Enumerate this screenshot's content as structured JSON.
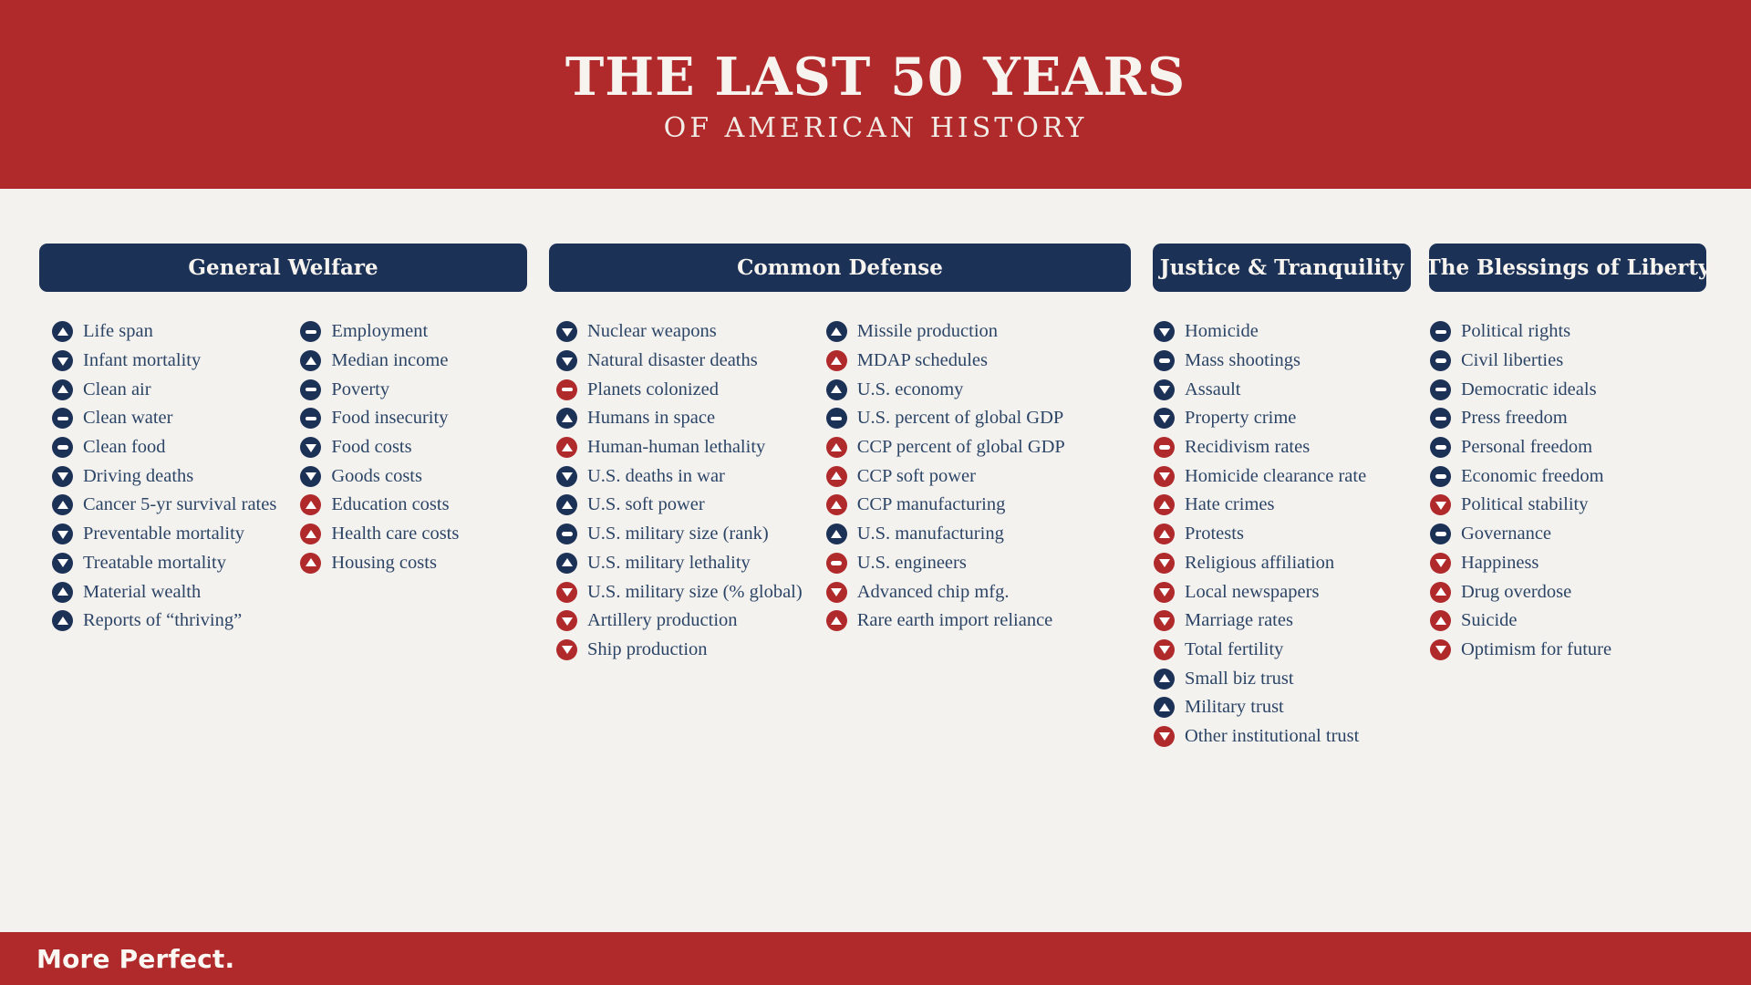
{
  "header": {
    "title": "THE LAST 50 YEARS",
    "subtitle": "OF AMERICAN HISTORY"
  },
  "footer": {
    "brand": "More Perfect."
  },
  "colors": {
    "red": "#B02A2C",
    "navy": "#1C3156",
    "background": "#F4F2EF",
    "item_text": "#2C4566"
  },
  "icon_legend": {
    "up": "trend-up-icon",
    "down": "trend-down-icon",
    "flat": "trend-flat-icon",
    "navy": "neutral-or-positive-tone",
    "red": "negative-tone"
  },
  "columns": [
    {
      "title": "General Welfare",
      "lists": [
        [
          {
            "label": "Life span",
            "trend": "up",
            "tone": "navy"
          },
          {
            "label": "Infant mortality",
            "trend": "down",
            "tone": "navy"
          },
          {
            "label": "Clean air",
            "trend": "up",
            "tone": "navy"
          },
          {
            "label": "Clean water",
            "trend": "flat",
            "tone": "navy"
          },
          {
            "label": "Clean food",
            "trend": "flat",
            "tone": "navy"
          },
          {
            "label": "Driving deaths",
            "trend": "down",
            "tone": "navy"
          },
          {
            "label": "Cancer 5-yr survival rates",
            "trend": "up",
            "tone": "navy"
          },
          {
            "label": "Preventable mortality",
            "trend": "down",
            "tone": "navy"
          },
          {
            "label": "Treatable mortality",
            "trend": "down",
            "tone": "navy"
          },
          {
            "label": "Material wealth",
            "trend": "up",
            "tone": "navy"
          },
          {
            "label": "Reports of “thriving”",
            "trend": "up",
            "tone": "navy"
          }
        ],
        [
          {
            "label": "Employment",
            "trend": "flat",
            "tone": "navy"
          },
          {
            "label": "Median income",
            "trend": "up",
            "tone": "navy"
          },
          {
            "label": "Poverty",
            "trend": "flat",
            "tone": "navy"
          },
          {
            "label": "Food insecurity",
            "trend": "flat",
            "tone": "navy"
          },
          {
            "label": "Food costs",
            "trend": "down",
            "tone": "navy"
          },
          {
            "label": "Goods costs",
            "trend": "down",
            "tone": "navy"
          },
          {
            "label": "Education costs",
            "trend": "up",
            "tone": "red"
          },
          {
            "label": "Health care costs",
            "trend": "up",
            "tone": "red"
          },
          {
            "label": "Housing costs",
            "trend": "up",
            "tone": "red"
          }
        ]
      ]
    },
    {
      "title": "Common Defense",
      "lists": [
        [
          {
            "label": "Nuclear weapons",
            "trend": "down",
            "tone": "navy"
          },
          {
            "label": "Natural disaster deaths",
            "trend": "down",
            "tone": "navy"
          },
          {
            "label": "Planets colonized",
            "trend": "flat",
            "tone": "red"
          },
          {
            "label": "Humans in space",
            "trend": "up",
            "tone": "navy"
          },
          {
            "label": "Human-human lethality",
            "trend": "up",
            "tone": "red"
          },
          {
            "label": "U.S. deaths in war",
            "trend": "down",
            "tone": "navy"
          },
          {
            "label": "U.S. soft power",
            "trend": "up",
            "tone": "navy"
          },
          {
            "label": "U.S. military size (rank)",
            "trend": "flat",
            "tone": "navy"
          },
          {
            "label": "U.S. military lethality",
            "trend": "up",
            "tone": "navy"
          },
          {
            "label": "U.S. military size (% global)",
            "trend": "down",
            "tone": "red"
          },
          {
            "label": "Artillery production",
            "trend": "down",
            "tone": "red"
          },
          {
            "label": "Ship production",
            "trend": "down",
            "tone": "red"
          }
        ],
        [
          {
            "label": "Missile production",
            "trend": "up",
            "tone": "navy"
          },
          {
            "label": "MDAP schedules",
            "trend": "up",
            "tone": "red"
          },
          {
            "label": "U.S. economy",
            "trend": "up",
            "tone": "navy"
          },
          {
            "label": "U.S. percent of global GDP",
            "trend": "flat",
            "tone": "navy"
          },
          {
            "label": "CCP percent of global GDP",
            "trend": "up",
            "tone": "red"
          },
          {
            "label": "CCP soft power",
            "trend": "up",
            "tone": "red"
          },
          {
            "label": "CCP manufacturing",
            "trend": "up",
            "tone": "red"
          },
          {
            "label": "U.S. manufacturing",
            "trend": "up",
            "tone": "navy"
          },
          {
            "label": "U.S. engineers",
            "trend": "flat",
            "tone": "red"
          },
          {
            "label": "Advanced chip mfg.",
            "trend": "down",
            "tone": "red"
          },
          {
            "label": "Rare earth import reliance",
            "trend": "up",
            "tone": "red"
          }
        ]
      ]
    },
    {
      "title": "Justice & Tranquility",
      "lists": [
        [
          {
            "label": "Homicide",
            "trend": "down",
            "tone": "navy"
          },
          {
            "label": "Mass shootings",
            "trend": "flat",
            "tone": "navy"
          },
          {
            "label": "Assault",
            "trend": "down",
            "tone": "navy"
          },
          {
            "label": "Property crime",
            "trend": "down",
            "tone": "navy"
          },
          {
            "label": "Recidivism rates",
            "trend": "flat",
            "tone": "red"
          },
          {
            "label": "Homicide clearance rate",
            "trend": "down",
            "tone": "red"
          },
          {
            "label": "Hate crimes",
            "trend": "up",
            "tone": "red"
          },
          {
            "label": "Protests",
            "trend": "up",
            "tone": "red"
          },
          {
            "label": "Religious affiliation",
            "trend": "down",
            "tone": "red"
          },
          {
            "label": "Local newspapers",
            "trend": "down",
            "tone": "red"
          },
          {
            "label": "Marriage rates",
            "trend": "down",
            "tone": "red"
          },
          {
            "label": "Total fertility",
            "trend": "down",
            "tone": "red"
          },
          {
            "label": "Small biz trust",
            "trend": "up",
            "tone": "navy"
          },
          {
            "label": "Military trust",
            "trend": "up",
            "tone": "navy"
          },
          {
            "label": "Other institutional trust",
            "trend": "down",
            "tone": "red"
          }
        ]
      ]
    },
    {
      "title": "The Blessings of Liberty",
      "lists": [
        [
          {
            "label": "Political rights",
            "trend": "flat",
            "tone": "navy"
          },
          {
            "label": "Civil liberties",
            "trend": "flat",
            "tone": "navy"
          },
          {
            "label": "Democratic ideals",
            "trend": "flat",
            "tone": "navy"
          },
          {
            "label": "Press freedom",
            "trend": "flat",
            "tone": "navy"
          },
          {
            "label": "Personal freedom",
            "trend": "flat",
            "tone": "navy"
          },
          {
            "label": "Economic freedom",
            "trend": "flat",
            "tone": "navy"
          },
          {
            "label": "Political stability",
            "trend": "down",
            "tone": "red"
          },
          {
            "label": "Governance",
            "trend": "flat",
            "tone": "navy"
          },
          {
            "label": "Happiness",
            "trend": "down",
            "tone": "red"
          },
          {
            "label": "Drug overdose",
            "trend": "up",
            "tone": "red"
          },
          {
            "label": "Suicide",
            "trend": "up",
            "tone": "red"
          },
          {
            "label": "Optimism for future",
            "trend": "down",
            "tone": "red"
          }
        ]
      ]
    }
  ]
}
